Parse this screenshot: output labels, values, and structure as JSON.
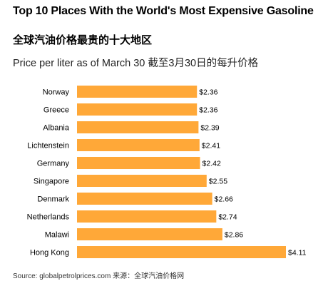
{
  "title": "Top 10 Places With the World's Most Expensive Gasoline",
  "title_cn": "全球汽油价格最贵的十大地区",
  "subtitle": "Price per liter as of March 30 截至3月30日的每升价格",
  "source": "Source: globalpetrolprices.com 来源：全球汽油价格网",
  "colors": {
    "bar": "#ffa838",
    "text": "#000000"
  },
  "chart_data": {
    "type": "bar",
    "orientation": "horizontal",
    "categories": [
      "Norway",
      "Greece",
      "Albania",
      "Lichtenstein",
      "Germany",
      "Singapore",
      "Denmark",
      "Netherlands",
      "Malawi",
      "Hong Kong"
    ],
    "values": [
      2.36,
      2.36,
      2.39,
      2.41,
      2.42,
      2.55,
      2.66,
      2.74,
      2.86,
      4.11
    ],
    "value_labels": [
      "$2.36",
      "$2.36",
      "$2.39",
      "$2.41",
      "$2.42",
      "$2.55",
      "$2.66",
      "$2.74",
      "$2.86",
      "$4.11"
    ],
    "title": "Top 10 Places With the World's Most Expensive Gasoline",
    "xlabel": "",
    "ylabel": "",
    "xlim": [
      0,
      4.11
    ],
    "grid": false,
    "legend": "none"
  }
}
